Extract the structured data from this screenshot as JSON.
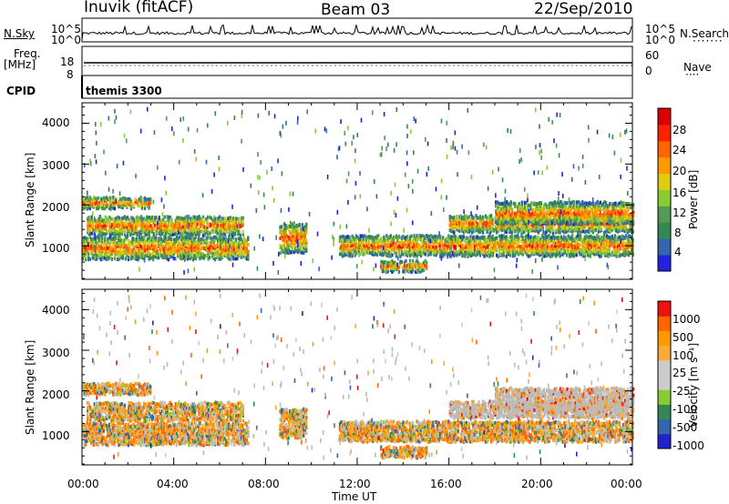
{
  "header": {
    "station": "Inuvik (fitACF)",
    "beam": "Beam 03",
    "date": "22/Sep/2010"
  },
  "panel_labels": {
    "nsky": "N.Sky",
    "nsearch": "N.Search",
    "freq": "Freq.",
    "mhz": "[MHz]",
    "nave": "Nave",
    "cpid": "CPID",
    "cpid_value": "themis 3300",
    "nsky_ticks": [
      "10^5",
      "10^0"
    ],
    "nsearch_ticks": [
      "10^5",
      "10^0"
    ],
    "freq_ticks": [
      "18",
      "8"
    ],
    "nave_ticks": [
      "60",
      "0"
    ]
  },
  "colors": {
    "power_scale": [
      "#2222dd",
      "#3366aa",
      "#338855",
      "#559955",
      "#88cc33",
      "#ddcc11",
      "#ff9900",
      "#ff6600",
      "#ff2200",
      "#dd0000"
    ],
    "velocity_scale": [
      "#ee1111",
      "#ff6600",
      "#ff9900",
      "#ffaa33",
      "#cccccc",
      "#cccccc",
      "#88cc33",
      "#338855",
      "#3366aa",
      "#2222cc"
    ],
    "ground_scatter": "#bbbbbb"
  },
  "chart_data": [
    {
      "type": "heatmap",
      "name": "power",
      "ylabel": "Slant Range [km]",
      "yticks": [
        1000,
        2000,
        3000,
        4000
      ],
      "ylim": [
        180,
        4500
      ],
      "colorbar_label": "Power [dB]",
      "colorbar_ticks": [
        "28",
        "24",
        "20",
        "16",
        "12",
        "8",
        "4"
      ],
      "xlim_hours": [
        0,
        24
      ]
    },
    {
      "type": "heatmap",
      "name": "velocity",
      "ylabel": "Slant Range [km]",
      "yticks": [
        1000,
        2000,
        3000,
        4000
      ],
      "ylim": [
        180,
        4500
      ],
      "colorbar_label": "Velocity [m s⁻¹]",
      "colorbar_ticks": [
        "1000",
        "500",
        "100",
        "25",
        "-25",
        "-100",
        "-500",
        "-1000"
      ],
      "xlim_hours": [
        0,
        24
      ]
    }
  ],
  "x_axis": {
    "ticks": [
      "00:00",
      "04:00",
      "08:00",
      "12:00",
      "16:00",
      "20:00",
      "00:00"
    ],
    "label": "Time UT"
  }
}
